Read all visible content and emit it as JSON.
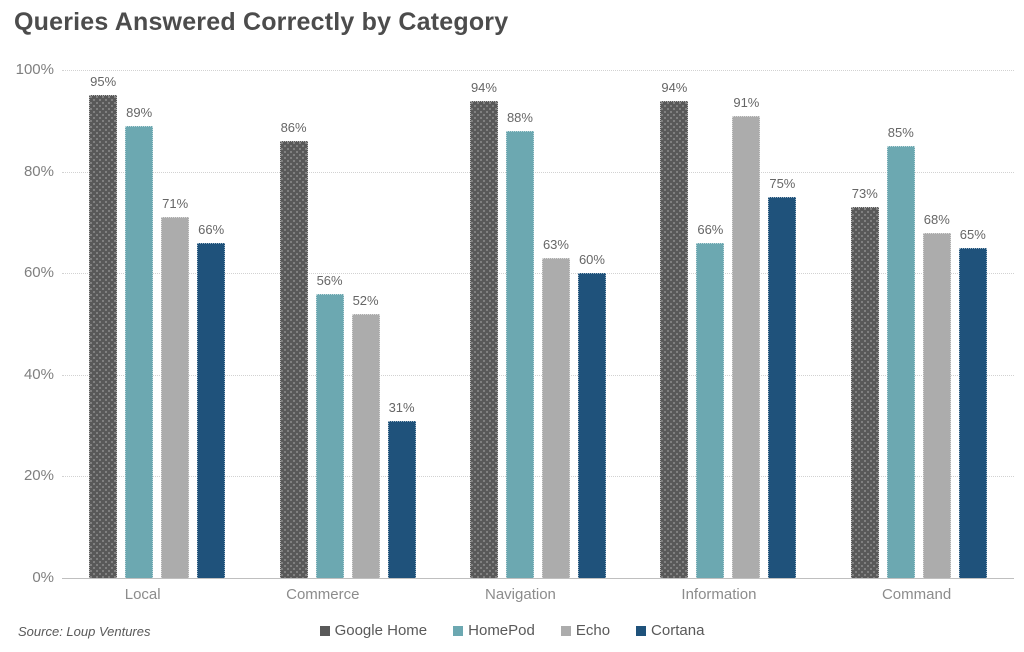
{
  "title": "Queries Answered Correctly by Category",
  "source": "Source: Loup Ventures",
  "chart_data": {
    "type": "bar",
    "title": "Queries Answered Correctly by Category",
    "categories": [
      "Local",
      "Commerce",
      "Navigation",
      "Information",
      "Command"
    ],
    "series": [
      {
        "name": "Google Home",
        "color": "#595959",
        "pattern": "dots",
        "values": [
          95,
          86,
          94,
          94,
          73
        ]
      },
      {
        "name": "HomePod",
        "color": "#6CA8B1",
        "pattern": "none",
        "values": [
          89,
          56,
          88,
          66,
          85
        ]
      },
      {
        "name": "Echo",
        "color": "#ACACAC",
        "pattern": "none",
        "values": [
          71,
          52,
          63,
          91,
          68
        ]
      },
      {
        "name": "Cortana",
        "color": "#1F527B",
        "pattern": "none",
        "values": [
          66,
          31,
          60,
          75,
          65
        ]
      }
    ],
    "value_label_suffix": "%",
    "y_axis": {
      "min": 0,
      "max": 100,
      "step": 20,
      "tick_labels": [
        "0%",
        "20%",
        "40%",
        "60%",
        "80%",
        "100%"
      ]
    },
    "grid": true,
    "legend_position": "bottom"
  },
  "colors": {
    "title_text": "#4c4c4c",
    "axis_label_text": "#7f7f7f",
    "value_label_text": "#666666",
    "gridline": "#d2d2d2",
    "axis_line": "#bfbfbf"
  }
}
